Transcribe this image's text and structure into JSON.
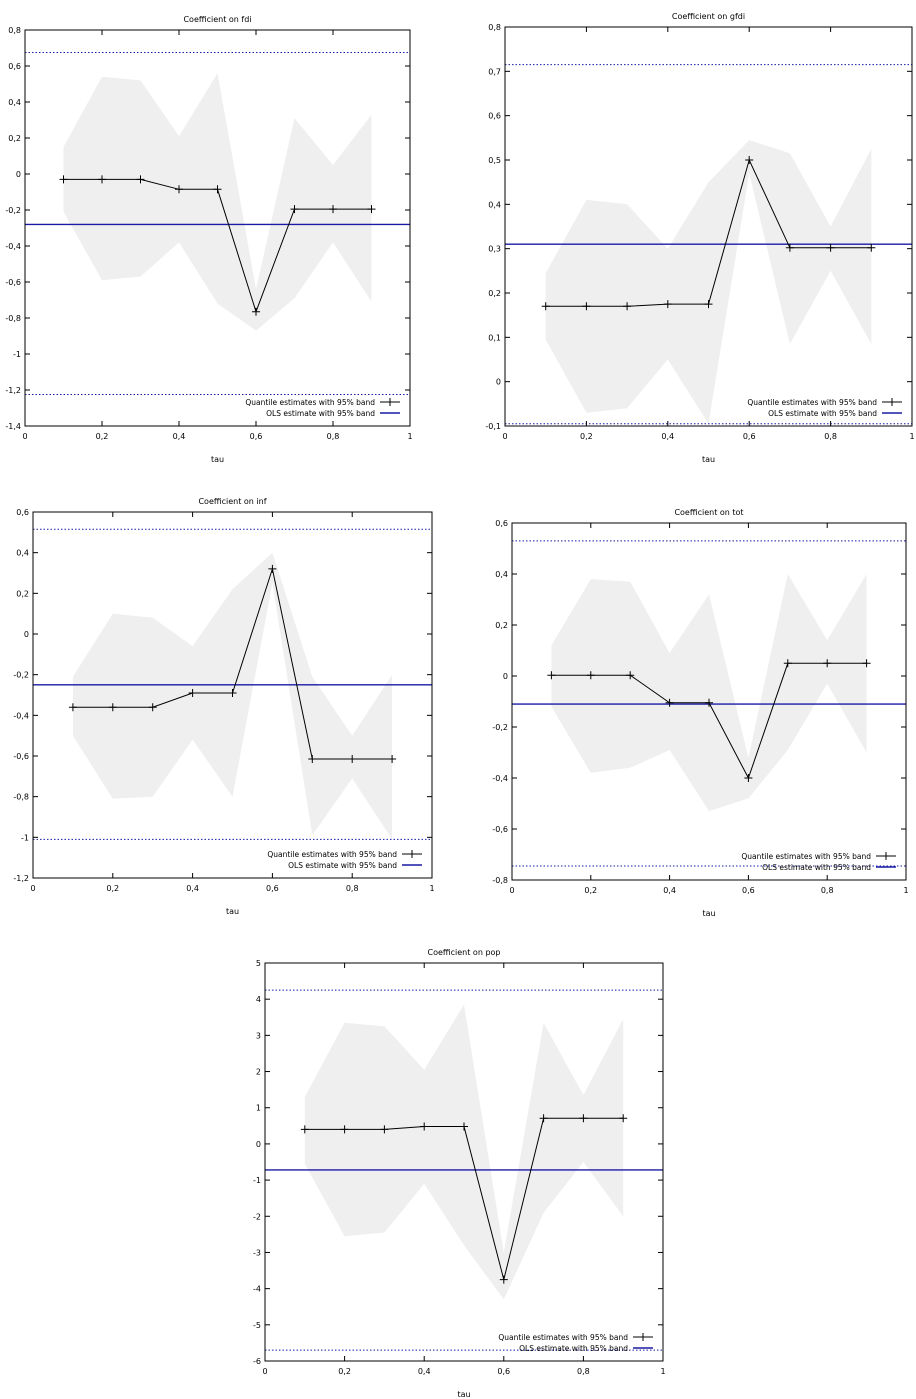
{
  "legend": {
    "quantile_label": "Quantile estimates with 95% band",
    "ols_label": "OLS estimate with 95% band"
  },
  "colors": {
    "quantile_line": "#000000",
    "band_fill": "#efefef",
    "ols_line": "#1a1aa6"
  },
  "chart_data": [
    {
      "type": "line",
      "title": "Coefficient on fdi",
      "xlabel": "tau",
      "ylabel": "",
      "xlim": [
        0,
        1
      ],
      "ylim": [
        -1.4,
        0.8
      ],
      "x_ticks": [
        "0",
        "0,2",
        "0,4",
        "0,6",
        "0,8",
        "1"
      ],
      "y_ticks": [
        "-1,4",
        "-1,2",
        "-1",
        "-0,8",
        "-0,6",
        "-0,4",
        "-0,2",
        "0",
        "0,2",
        "0,4",
        "0,6",
        "0,8"
      ],
      "x": [
        0.1,
        0.2,
        0.3,
        0.4,
        0.5,
        0.6,
        0.7,
        0.8,
        0.9
      ],
      "quantile": [
        -0.03,
        -0.03,
        -0.03,
        -0.085,
        -0.085,
        -0.765,
        -0.195,
        -0.195,
        -0.195
      ],
      "band_upper": [
        0.15,
        0.54,
        0.52,
        0.21,
        0.56,
        -0.64,
        0.31,
        0.05,
        0.33
      ],
      "band_lower": [
        -0.21,
        -0.59,
        -0.57,
        -0.38,
        -0.72,
        -0.87,
        -0.69,
        -0.38,
        -0.71
      ],
      "ols": -0.28,
      "ols_upper": 0.675,
      "ols_lower": -1.225,
      "legend_position": "bottom-right",
      "grid": false
    },
    {
      "type": "line",
      "title": "Coefficient on gfdi",
      "xlabel": "tau",
      "ylabel": "",
      "xlim": [
        0,
        1
      ],
      "ylim": [
        -0.1,
        0.8
      ],
      "x_ticks": [
        "0",
        "0,2",
        "0,4",
        "0,6",
        "0,8",
        "1"
      ],
      "y_ticks": [
        "-0,1",
        "0",
        "0,1",
        "0,2",
        "0,3",
        "0,4",
        "0,5",
        "0,6",
        "0,7",
        "0,8"
      ],
      "x": [
        0.1,
        0.2,
        0.3,
        0.4,
        0.5,
        0.6,
        0.7,
        0.8,
        0.9
      ],
      "quantile": [
        0.17,
        0.17,
        0.17,
        0.175,
        0.175,
        0.5,
        0.302,
        0.302,
        0.302
      ],
      "band_upper": [
        0.245,
        0.41,
        0.4,
        0.3,
        0.45,
        0.545,
        0.515,
        0.35,
        0.525
      ],
      "band_lower": [
        0.095,
        -0.07,
        -0.06,
        0.05,
        -0.095,
        0.47,
        0.085,
        0.25,
        0.085
      ],
      "ols": 0.31,
      "ols_upper": 0.715,
      "ols_lower": -0.095,
      "legend_position": "bottom-right",
      "grid": false
    },
    {
      "type": "line",
      "title": "Coefficient on inf",
      "xlabel": "tau",
      "ylabel": "",
      "xlim": [
        0,
        1
      ],
      "ylim": [
        -1.2,
        0.6
      ],
      "x_ticks": [
        "0",
        "0,2",
        "0,4",
        "0,6",
        "0,8",
        "1"
      ],
      "y_ticks": [
        "-1,2",
        "-1",
        "-0,8",
        "-0,6",
        "-0,4",
        "-0,2",
        "0",
        "0,2",
        "0,4",
        "0,6"
      ],
      "x": [
        0.1,
        0.2,
        0.3,
        0.4,
        0.5,
        0.6,
        0.7,
        0.8,
        0.9
      ],
      "quantile": [
        -0.36,
        -0.36,
        -0.36,
        -0.29,
        -0.29,
        0.32,
        -0.615,
        -0.615,
        -0.615
      ],
      "band_upper": [
        -0.21,
        0.1,
        0.08,
        -0.06,
        0.22,
        0.4,
        -0.21,
        -0.5,
        -0.2
      ],
      "band_lower": [
        -0.5,
        -0.81,
        -0.8,
        -0.52,
        -0.8,
        0.25,
        -0.99,
        -0.71,
        -1.01
      ],
      "ols": -0.25,
      "ols_upper": 0.515,
      "ols_lower": -1.01,
      "legend_position": "bottom-right",
      "grid": false
    },
    {
      "type": "line",
      "title": "Coefficient on tot",
      "xlabel": "tau",
      "ylabel": "",
      "xlim": [
        0,
        1
      ],
      "ylim": [
        -0.8,
        0.6
      ],
      "x_ticks": [
        "0",
        "0,2",
        "0,4",
        "0,6",
        "0,8",
        "1"
      ],
      "y_ticks": [
        "-0,8",
        "-0,6",
        "-0,4",
        "-0,2",
        "0",
        "0,2",
        "0,4",
        "0,6"
      ],
      "x": [
        0.1,
        0.2,
        0.3,
        0.4,
        0.5,
        0.6,
        0.7,
        0.8,
        0.9
      ],
      "quantile": [
        0.003,
        0.003,
        0.003,
        -0.105,
        -0.105,
        -0.4,
        0.05,
        0.05,
        0.05
      ],
      "band_upper": [
        0.12,
        0.38,
        0.37,
        0.09,
        0.32,
        -0.32,
        0.4,
        0.14,
        0.4
      ],
      "band_lower": [
        -0.12,
        -0.38,
        -0.36,
        -0.29,
        -0.53,
        -0.48,
        -0.29,
        -0.03,
        -0.3
      ],
      "ols": -0.11,
      "ols_upper": 0.53,
      "ols_lower": -0.745,
      "legend_position": "bottom-right",
      "grid": false
    },
    {
      "type": "line",
      "title": "Coefficient on pop",
      "xlabel": "tau",
      "ylabel": "",
      "xlim": [
        0,
        1
      ],
      "ylim": [
        -6,
        5
      ],
      "x_ticks": [
        "0",
        "0,2",
        "0,4",
        "0,6",
        "0,8",
        "1"
      ],
      "y_ticks": [
        "-6",
        "-5",
        "-4",
        "-3",
        "-2",
        "-1",
        "0",
        "1",
        "2",
        "3",
        "4",
        "5"
      ],
      "x": [
        0.1,
        0.2,
        0.3,
        0.4,
        0.5,
        0.6,
        0.7,
        0.8,
        0.9
      ],
      "quantile": [
        0.4,
        0.4,
        0.4,
        0.48,
        0.48,
        -3.75,
        0.71,
        0.71,
        0.71
      ],
      "band_upper": [
        1.3,
        3.35,
        3.25,
        2.05,
        3.85,
        -3.0,
        3.35,
        1.35,
        3.45
      ],
      "band_lower": [
        -0.55,
        -2.55,
        -2.45,
        -1.1,
        -2.8,
        -4.3,
        -1.9,
        -0.5,
        -2.0
      ],
      "ols": -0.72,
      "ols_upper": 4.25,
      "ols_lower": -5.7,
      "legend_position": "bottom-right",
      "grid": false
    }
  ]
}
